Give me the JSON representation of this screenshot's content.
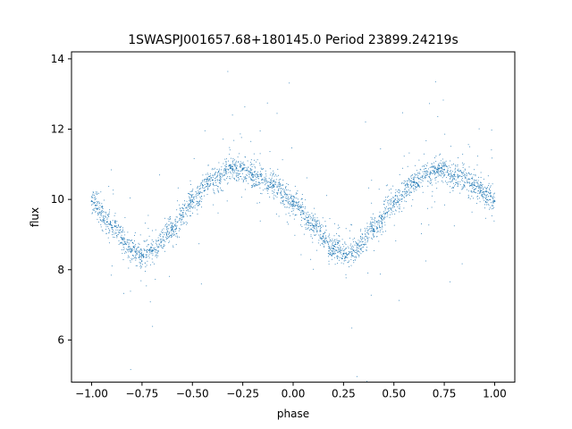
{
  "chart_data": {
    "type": "scatter",
    "title": "1SWASPJ001657.68+180145.0 Period 23899.24219s",
    "xlabel": "phase",
    "ylabel": "flux",
    "xlim": [
      -1.1,
      1.1
    ],
    "ylim": [
      4.8,
      14.2
    ],
    "xticks": [
      -1.0,
      -0.75,
      -0.5,
      -0.25,
      0.0,
      0.25,
      0.5,
      0.75,
      1.0
    ],
    "xtick_labels": [
      "−1.00",
      "−0.75",
      "−0.50",
      "−0.25",
      "0.00",
      "0.25",
      "0.50",
      "0.75",
      "1.00"
    ],
    "yticks": [
      6,
      8,
      10,
      12,
      14
    ],
    "ytick_labels": [
      "6",
      "8",
      "10",
      "12",
      "14"
    ],
    "grid": false,
    "point_color": "#1f77b4",
    "phase_range": [
      -1.0,
      1.0
    ],
    "series": [
      {
        "x": [
          -1.0,
          -0.9,
          -0.8,
          -0.75,
          -0.7,
          -0.6,
          -0.5,
          -0.4,
          -0.3,
          -0.25,
          -0.2,
          -0.1,
          0.0,
          0.1,
          0.2,
          0.25,
          0.3,
          0.4,
          0.5,
          0.6,
          0.7,
          0.75,
          0.8,
          0.9,
          1.0
        ],
        "y": [
          9.95,
          9.2,
          8.55,
          8.4,
          8.55,
          9.15,
          9.95,
          10.55,
          10.85,
          10.85,
          10.7,
          10.4,
          9.95,
          9.25,
          8.6,
          8.45,
          8.55,
          9.15,
          9.95,
          10.5,
          10.8,
          10.85,
          10.7,
          10.4,
          9.95
        ]
      }
    ]
  }
}
